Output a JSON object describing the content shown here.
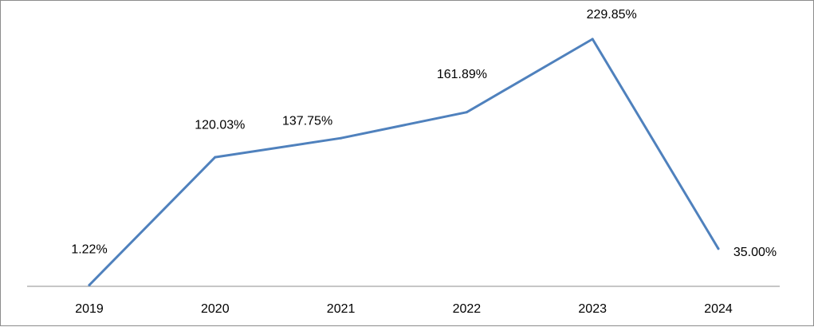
{
  "chart_data": {
    "type": "line",
    "title": "",
    "xlabel": "",
    "ylabel": "",
    "categories": [
      "2019",
      "2020",
      "2021",
      "2022",
      "2023",
      "2024"
    ],
    "series": [
      {
        "values": [
          1.22,
          120.03,
          137.75,
          161.89,
          229.85,
          35.0
        ],
        "labels": [
          "1.22%",
          "120.03%",
          "137.75%",
          "161.89%",
          "229.85%",
          "35.00%"
        ],
        "color": "#4f81bd"
      }
    ],
    "ylim": [
      0,
      250
    ],
    "grid": false,
    "legend": "none"
  }
}
